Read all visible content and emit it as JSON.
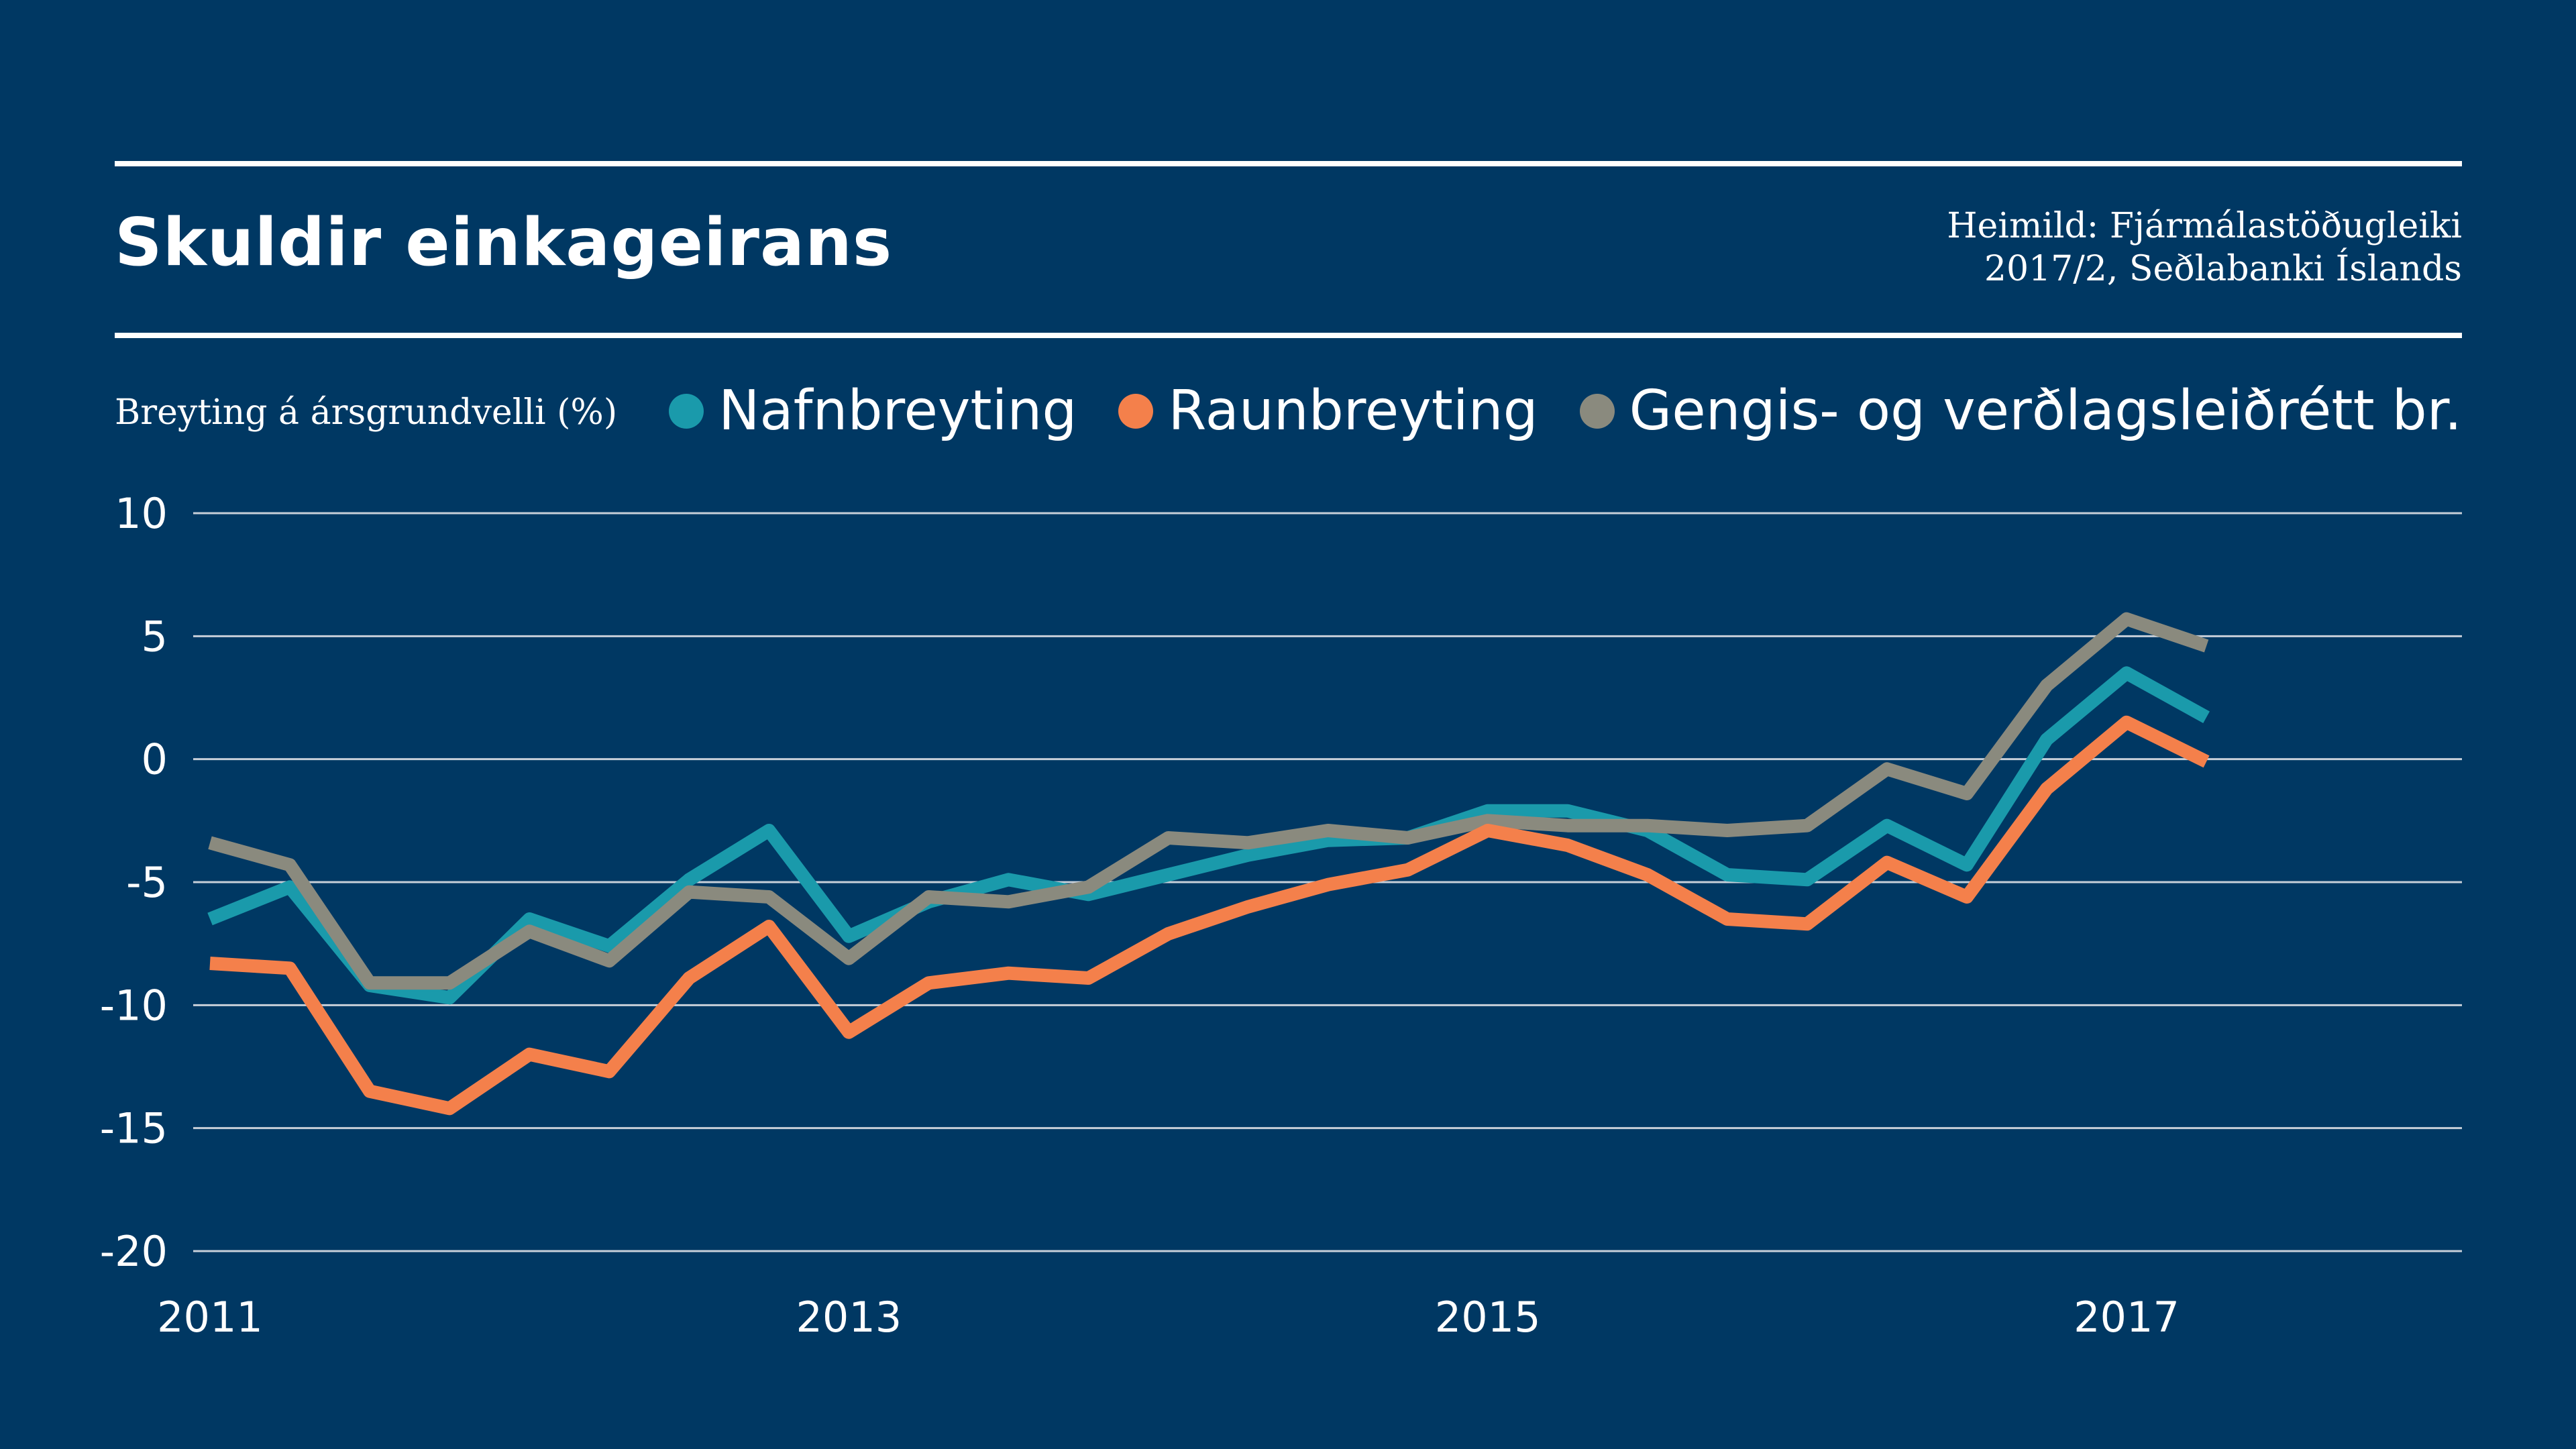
{
  "header": {
    "title": "Skuldir einkageirans",
    "source_line1": "Heimild: Fjármálastöðugleiki",
    "source_line2": "2017/2, Seðlabanki Íslands"
  },
  "y_axis_title": "Breyting á ársgrundvelli (%)",
  "colors": {
    "background": "#003863",
    "grid": "#c7cfd9",
    "Nafnbreyting": "#1a9aab",
    "Raunbreyting": "#f4804b",
    "Gengis": "#8a8a7e"
  },
  "chart_data": {
    "type": "line",
    "title": "Skuldir einkageirans",
    "ylabel": "Breyting á ársgrundvelli (%)",
    "xlabel": "",
    "ylim": [
      -20,
      10
    ],
    "yticks": [
      10,
      5,
      0,
      -5,
      -10,
      -15,
      -20
    ],
    "xlim": [
      2011,
      2018.05
    ],
    "xticks": [
      2011,
      2013,
      2015,
      2017
    ],
    "grid": true,
    "legend_position": "top",
    "x": [
      2011.0,
      2011.25,
      2011.5,
      2011.75,
      2012.0,
      2012.25,
      2012.5,
      2012.75,
      2013.0,
      2013.25,
      2013.5,
      2013.75,
      2014.0,
      2014.25,
      2014.5,
      2014.75,
      2015.0,
      2015.25,
      2015.5,
      2015.75,
      2016.0,
      2016.25,
      2016.5,
      2016.75,
      2017.0,
      2017.25,
      2017.5
    ],
    "series": [
      {
        "name": "Nafnbreyting",
        "values": [
          -6.5,
          -5.2,
          -9.2,
          -9.7,
          -6.5,
          -7.6,
          -4.9,
          -2.9,
          -7.2,
          -5.8,
          -4.9,
          -5.5,
          -4.7,
          -3.9,
          -3.3,
          -3.2,
          -2.1,
          -2.1,
          -2.9,
          -4.7,
          -4.9,
          -2.7,
          -4.3,
          0.8,
          3.5,
          1.7,
          null
        ]
      },
      {
        "name": "Raunbreyting",
        "values": [
          -8.3,
          -8.5,
          -13.5,
          -14.2,
          -12.0,
          -12.7,
          -8.9,
          -6.8,
          -11.1,
          -9.1,
          -8.7,
          -8.9,
          -7.1,
          -6.0,
          -5.1,
          -4.5,
          -2.9,
          -3.5,
          -4.7,
          -6.5,
          -6.7,
          -4.2,
          -5.6,
          -1.2,
          1.5,
          -0.1,
          null
        ]
      },
      {
        "name": "Gengis- og verðlagsleiðrétt br.",
        "values": [
          -3.4,
          -4.3,
          -9.1,
          -9.1,
          -7.0,
          -8.2,
          -5.4,
          -5.6,
          -8.1,
          -5.6,
          -5.8,
          -5.2,
          -3.2,
          -3.4,
          -2.9,
          -3.2,
          -2.5,
          -2.7,
          -2.7,
          -2.9,
          -2.7,
          -0.4,
          -1.4,
          3.0,
          5.7,
          4.6,
          null
        ]
      }
    ]
  }
}
